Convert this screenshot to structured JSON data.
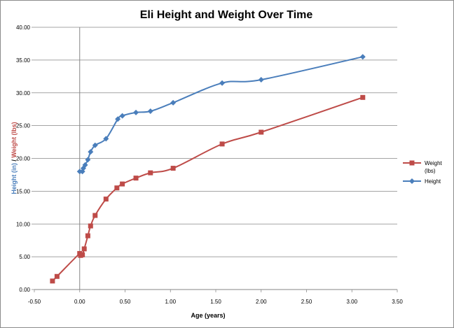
{
  "chart_data": {
    "type": "line",
    "title": "Eli Height and Weight Over Time",
    "xlabel": "Age (years)",
    "ylabel_parts": [
      "Height (in)",
      " / ",
      "Weight (lbs)"
    ],
    "xlim": [
      -0.5,
      3.5
    ],
    "ylim": [
      0,
      40
    ],
    "x_ticks": [
      "-0.50",
      "0.00",
      "0.50",
      "1.00",
      "1.50",
      "2.00",
      "2.50",
      "3.00",
      "3.50"
    ],
    "y_ticks": [
      "0.00",
      "5.00",
      "10.00",
      "15.00",
      "20.00",
      "25.00",
      "30.00",
      "35.00",
      "40.00"
    ],
    "grid": "horizontal",
    "legend_position": "right",
    "series": [
      {
        "name": "Weight (lbs)",
        "legend_lines": [
          "Weight",
          "(lbs)"
        ],
        "color": "#be4b48",
        "marker": "square",
        "x": [
          -0.3,
          -0.25,
          0.0,
          0.01,
          0.03,
          0.05,
          0.09,
          0.12,
          0.17,
          0.29,
          0.41,
          0.47,
          0.62,
          0.78,
          1.03,
          1.57,
          2.0,
          3.12
        ],
        "y": [
          1.3,
          2.0,
          5.5,
          5.2,
          5.3,
          6.2,
          8.2,
          9.7,
          11.3,
          13.8,
          15.5,
          16.1,
          17.0,
          17.8,
          18.5,
          22.2,
          24.0,
          29.3
        ]
      },
      {
        "name": "Height",
        "legend_lines": [
          "Height"
        ],
        "color": "#4a7ebb",
        "marker": "diamond",
        "x": [
          0.0,
          0.03,
          0.04,
          0.06,
          0.09,
          0.12,
          0.17,
          0.29,
          0.42,
          0.47,
          0.62,
          0.78,
          1.03,
          1.57,
          2.0,
          3.12
        ],
        "y": [
          18.0,
          18.0,
          18.5,
          19.0,
          19.8,
          21.0,
          22.0,
          23.0,
          26.0,
          26.5,
          27.0,
          27.2,
          28.5,
          31.5,
          32.0,
          35.5
        ]
      }
    ]
  }
}
